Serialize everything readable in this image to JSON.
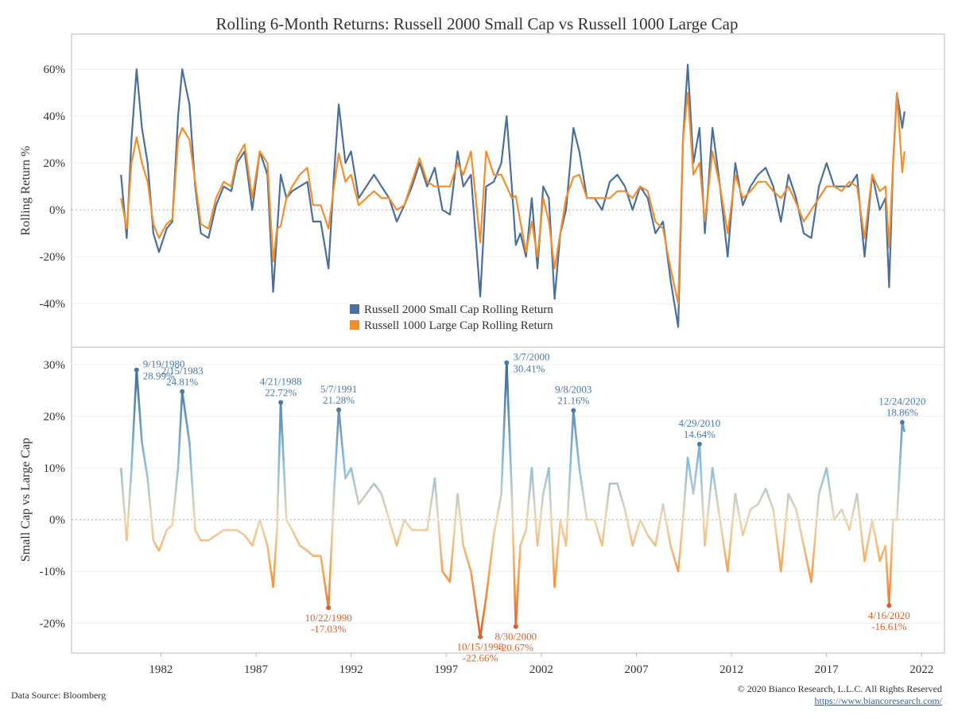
{
  "chart_data": [
    {
      "type": "line",
      "title": "Rolling 6-Month Returns: Russell 2000 Small Cap vs Russell 1000 Large Cap",
      "ylabel": "Rolling Return %",
      "xlim": [
        1977.3,
        2023.2
      ],
      "ylim": [
        -58.6,
        75
      ],
      "yticks": [
        {
          "value": -40,
          "label": "-40%"
        },
        {
          "value": -20,
          "label": "-20%"
        },
        {
          "value": 0,
          "label": "0%"
        },
        {
          "value": 20,
          "label": "20%"
        },
        {
          "value": 40,
          "label": "40%"
        },
        {
          "value": 60,
          "label": "60%"
        }
      ],
      "grid": true,
      "legend": "bottom-center",
      "x": [
        1979.9,
        1980.2,
        1980.45,
        1980.72,
        1981.0,
        1981.3,
        1981.6,
        1981.9,
        1982.3,
        1982.6,
        1982.9,
        1983.12,
        1983.5,
        1983.8,
        1984.1,
        1984.5,
        1984.9,
        1985.3,
        1985.7,
        1986.0,
        1986.4,
        1986.8,
        1987.2,
        1987.6,
        1987.9,
        1988.1,
        1988.3,
        1988.6,
        1988.9,
        1989.3,
        1989.7,
        1990.0,
        1990.4,
        1990.81,
        1991.1,
        1991.35,
        1991.7,
        1992.0,
        1992.4,
        1992.8,
        1993.2,
        1993.6,
        1994.0,
        1994.4,
        1994.8,
        1995.2,
        1995.6,
        1996.0,
        1996.4,
        1996.8,
        1997.2,
        1997.6,
        1997.9,
        1998.3,
        1998.79,
        1999.1,
        1999.5,
        1999.9,
        2000.18,
        2000.45,
        2000.66,
        2000.9,
        2001.2,
        2001.5,
        2001.8,
        2002.1,
        2002.4,
        2002.7,
        2003.0,
        2003.3,
        2003.69,
        2004.0,
        2004.4,
        2004.8,
        2005.2,
        2005.6,
        2006.0,
        2006.4,
        2006.8,
        2007.2,
        2007.6,
        2008.0,
        2008.4,
        2008.8,
        2009.2,
        2009.45,
        2009.7,
        2010.0,
        2010.32,
        2010.6,
        2011.0,
        2011.4,
        2011.8,
        2012.2,
        2012.6,
        2013.0,
        2013.4,
        2013.8,
        2014.2,
        2014.6,
        2015.0,
        2015.4,
        2015.8,
        2016.2,
        2016.6,
        2017.0,
        2017.4,
        2017.8,
        2018.2,
        2018.6,
        2019.0,
        2019.4,
        2019.8,
        2020.1,
        2020.29,
        2020.5,
        2020.7,
        2020.98,
        2021.1
      ],
      "series": [
        {
          "name": "Russell 2000 Small Cap Rolling Return",
          "color": "#4a6f9c",
          "values": [
            15,
            -12,
            30,
            60,
            35,
            20,
            -10,
            -18,
            -8,
            -5,
            40,
            60,
            45,
            10,
            -10,
            -12,
            2,
            10,
            8,
            20,
            25,
            0,
            25,
            15,
            -35,
            -10,
            15,
            5,
            8,
            10,
            12,
            -5,
            -5,
            -25,
            15,
            45,
            20,
            25,
            5,
            10,
            15,
            10,
            5,
            -5,
            2,
            10,
            20,
            10,
            18,
            0,
            -2,
            25,
            10,
            15,
            -37,
            10,
            12,
            20,
            40,
            10,
            -15,
            -10,
            -20,
            5,
            -25,
            10,
            5,
            -38,
            -10,
            0,
            35,
            25,
            5,
            5,
            0,
            12,
            15,
            10,
            0,
            10,
            5,
            -10,
            -5,
            -30,
            -50,
            30,
            62,
            20,
            35,
            -10,
            35,
            10,
            -20,
            20,
            2,
            10,
            15,
            18,
            10,
            -5,
            15,
            5,
            -10,
            -12,
            10,
            20,
            10,
            10,
            10,
            15,
            -20,
            15,
            0,
            5,
            -33,
            20,
            50,
            35,
            42
          ]
        },
        {
          "name": "Russell 1000 Large Cap Rolling Return",
          "color": "#f28e2b",
          "values": [
            5,
            -8,
            20,
            31,
            20,
            12,
            -6,
            -12,
            -6,
            -4,
            30,
            35,
            30,
            12,
            -6,
            -8,
            5,
            12,
            10,
            22,
            28,
            5,
            25,
            20,
            -22,
            -8,
            -7,
            5,
            10,
            15,
            18,
            2,
            2,
            -8,
            10,
            24,
            12,
            15,
            2,
            5,
            8,
            5,
            5,
            0,
            2,
            12,
            22,
            12,
            10,
            10,
            10,
            20,
            15,
            25,
            -14,
            25,
            15,
            15,
            10,
            5,
            6,
            -5,
            -18,
            -5,
            -20,
            5,
            -5,
            -25,
            -10,
            5,
            14,
            15,
            5,
            5,
            5,
            5,
            8,
            8,
            5,
            10,
            8,
            -5,
            -8,
            -25,
            -40,
            30,
            50,
            15,
            20,
            -5,
            25,
            10,
            -10,
            15,
            5,
            8,
            12,
            12,
            8,
            5,
            10,
            3,
            -5,
            0,
            5,
            10,
            10,
            8,
            12,
            10,
            -12,
            15,
            8,
            10,
            -16,
            20,
            50,
            16,
            25
          ]
        }
      ]
    },
    {
      "type": "line",
      "ylabel": "Small Cap vs Large Cap",
      "xlim": [
        1977.3,
        2023.2
      ],
      "ylim": [
        -25.8,
        33.4
      ],
      "xticks": [
        1982,
        1987,
        1992,
        1997,
        2002,
        2007,
        2012,
        2017,
        2022
      ],
      "yticks": [
        {
          "value": -20,
          "label": "-20%"
        },
        {
          "value": -10,
          "label": "-10%"
        },
        {
          "value": 0,
          "label": "0%"
        },
        {
          "value": 10,
          "label": "10%"
        },
        {
          "value": 20,
          "label": "20%"
        },
        {
          "value": 30,
          "label": "30%"
        }
      ],
      "grid": true,
      "gradient": [
        "#2d5b8a",
        "#8fc0de",
        "#f0d6b0",
        "#f5a04e",
        "#d6501c"
      ],
      "annotation_colors": {
        "positive": "#4a79a8",
        "negative": "#d4622a"
      },
      "x": [
        1979.9,
        1980.2,
        1980.45,
        1980.72,
        1981.0,
        1981.3,
        1981.6,
        1981.9,
        1982.3,
        1982.6,
        1982.9,
        1983.12,
        1983.5,
        1983.8,
        1984.1,
        1984.5,
        1984.9,
        1985.3,
        1985.7,
        1986.0,
        1986.4,
        1986.8,
        1987.2,
        1987.6,
        1987.9,
        1988.1,
        1988.3,
        1988.6,
        1988.9,
        1989.3,
        1989.7,
        1990.0,
        1990.4,
        1990.81,
        1991.1,
        1991.35,
        1991.7,
        1992.0,
        1992.4,
        1992.8,
        1993.2,
        1993.6,
        1994.0,
        1994.4,
        1994.8,
        1995.2,
        1995.6,
        1996.0,
        1996.4,
        1996.8,
        1997.2,
        1997.6,
        1997.9,
        1998.3,
        1998.79,
        1999.1,
        1999.5,
        1999.9,
        2000.18,
        2000.45,
        2000.66,
        2000.9,
        2001.2,
        2001.5,
        2001.8,
        2002.1,
        2002.4,
        2002.7,
        2003.0,
        2003.3,
        2003.69,
        2004.0,
        2004.4,
        2004.8,
        2005.2,
        2005.6,
        2006.0,
        2006.4,
        2006.8,
        2007.2,
        2007.6,
        2008.0,
        2008.4,
        2008.8,
        2009.2,
        2009.45,
        2009.7,
        2010.0,
        2010.32,
        2010.6,
        2011.0,
        2011.4,
        2011.8,
        2012.2,
        2012.6,
        2013.0,
        2013.4,
        2013.8,
        2014.2,
        2014.6,
        2015.0,
        2015.4,
        2015.8,
        2016.2,
        2016.6,
        2017.0,
        2017.4,
        2017.8,
        2018.2,
        2018.6,
        2019.0,
        2019.4,
        2019.8,
        2020.1,
        2020.29,
        2020.5,
        2020.7,
        2020.98,
        2021.1
      ],
      "values": [
        10,
        -4,
        10,
        28.99,
        15,
        8,
        -4,
        -6,
        -2,
        -1,
        10,
        24.81,
        15,
        -2,
        -4,
        -4,
        -3,
        -2,
        -2,
        -2,
        -3,
        -5,
        0,
        -5,
        -13,
        -2,
        22.72,
        0,
        -2,
        -5,
        -6,
        -7,
        -7,
        -17.03,
        5,
        21.28,
        8,
        10,
        3,
        5,
        7,
        5,
        0,
        -5,
        0,
        -2,
        -2,
        -2,
        8,
        -10,
        -12,
        5,
        -5,
        -10,
        -22.66,
        -15,
        -3,
        5,
        30.41,
        5,
        -20.67,
        -5,
        -2,
        10,
        -5,
        5,
        10,
        -13,
        0,
        -5,
        21.16,
        10,
        0,
        0,
        -5,
        7,
        7,
        2,
        -5,
        0,
        -3,
        -5,
        3,
        -5,
        -10,
        0,
        12,
        5,
        14.64,
        -5,
        10,
        0,
        -10,
        5,
        -3,
        2,
        3,
        6,
        2,
        -10,
        5,
        2,
        -5,
        -12,
        5,
        10,
        0,
        2,
        -2,
        5,
        -8,
        0,
        -8,
        -5,
        -16.61,
        0,
        0,
        18.86,
        17
      ],
      "annotations": [
        {
          "date": "9/19/1980",
          "x": 1980.72,
          "y": 28.99,
          "label": "28.99%"
        },
        {
          "date": "2/15/1983",
          "x": 1983.12,
          "y": 24.81,
          "label": "24.81%"
        },
        {
          "date": "4/21/1988",
          "x": 1988.3,
          "y": 22.72,
          "label": "22.72%"
        },
        {
          "date": "5/7/1991",
          "x": 1991.35,
          "y": 21.28,
          "label": "21.28%"
        },
        {
          "date": "3/7/2000",
          "x": 2000.18,
          "y": 30.41,
          "label": "30.41%"
        },
        {
          "date": "9/8/2003",
          "x": 2003.69,
          "y": 21.16,
          "label": "21.16%"
        },
        {
          "date": "4/29/2010",
          "x": 2010.32,
          "y": 14.64,
          "label": "14.64%"
        },
        {
          "date": "12/24/2020",
          "x": 2020.98,
          "y": 18.86,
          "label": "18.86%"
        },
        {
          "date": "10/22/1990",
          "x": 1990.81,
          "y": -17.03,
          "label": "-17.03%"
        },
        {
          "date": "10/15/1998",
          "x": 1998.79,
          "y": -22.66,
          "label": "-22.66%"
        },
        {
          "date": "8/30/2000",
          "x": 2000.66,
          "y": -20.67,
          "label": "-20.67%"
        },
        {
          "date": "4/16/2020",
          "x": 2020.29,
          "y": -16.61,
          "label": "-16.61%"
        }
      ]
    }
  ],
  "source": "Data Source: Bloomberg",
  "copyright": "© 2020 Bianco Research, L.L.C. All Rights Reserved",
  "url": "https://www.biancoresearch.com/"
}
